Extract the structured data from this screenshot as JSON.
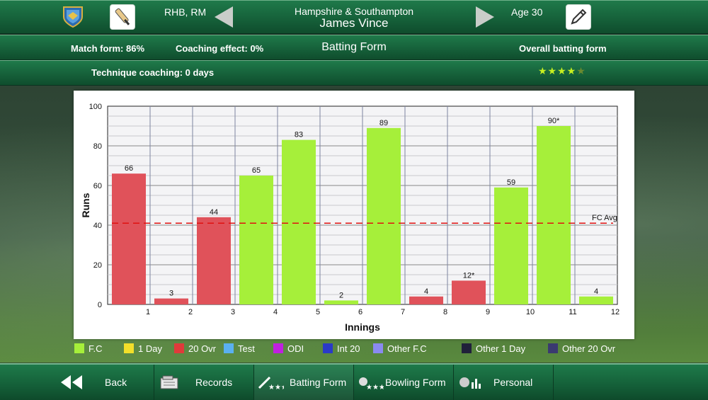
{
  "header": {
    "hand": "RHB, RM",
    "team": "Hampshire & Southampton",
    "player": "James Vince",
    "age": "Age 30"
  },
  "stats": {
    "match_form": "Match form: 86%",
    "coaching_effect": "Coaching effect: 0%",
    "title": "Batting Form",
    "overall": "Overall batting form",
    "technique": "Technique coaching: 0 days",
    "stars": "★★★★",
    "stars_rating": 4.5
  },
  "colors": {
    "fc": "#a6ef3a",
    "t20": "#e0525a",
    "avg": "#e01010"
  },
  "chart_data": {
    "type": "bar",
    "ylabel": "Runs",
    "xlabel": "Innings",
    "ylim": [
      0,
      100
    ],
    "yticks": [
      "0",
      "20",
      "40",
      "60",
      "80",
      "100"
    ],
    "categories": [
      "1",
      "2",
      "3",
      "4",
      "5",
      "6",
      "7",
      "8",
      "9",
      "10",
      "11",
      "12"
    ],
    "values": [
      66,
      3,
      44,
      65,
      83,
      2,
      89,
      4,
      12,
      59,
      90,
      4
    ],
    "labels": [
      "66",
      "3",
      "44",
      "65",
      "83",
      "2",
      "89",
      "4",
      "12*",
      "59",
      "90*",
      "4"
    ],
    "formats": [
      "20 Ovr",
      "20 Ovr",
      "20 Ovr",
      "F.C",
      "F.C",
      "F.C",
      "F.C",
      "20 Ovr",
      "20 Ovr",
      "F.C",
      "F.C",
      "F.C"
    ],
    "avg_label": "FC Avg",
    "avg_value": 41
  },
  "legend": [
    {
      "label": "F.C",
      "color": "#a6ef3a"
    },
    {
      "label": "1 Day",
      "color": "#f2df2a"
    },
    {
      "label": "20 Ovr",
      "color": "#e03a3a"
    },
    {
      "label": "Test",
      "color": "#5ab0f0"
    },
    {
      "label": "ODI",
      "color": "#c020e0"
    },
    {
      "label": "Int 20",
      "color": "#2a3ac8"
    },
    {
      "label": "Other F.C",
      "color": "#8a8af0"
    },
    {
      "label": "Other 1 Day",
      "color": "#20203a"
    },
    {
      "label": "Other 20 Ovr",
      "color": "#3a3a70"
    }
  ],
  "footer": {
    "back": "Back",
    "records": "Records",
    "batting": "Batting Form",
    "bowling": "Bowling Form",
    "personal": "Personal"
  }
}
